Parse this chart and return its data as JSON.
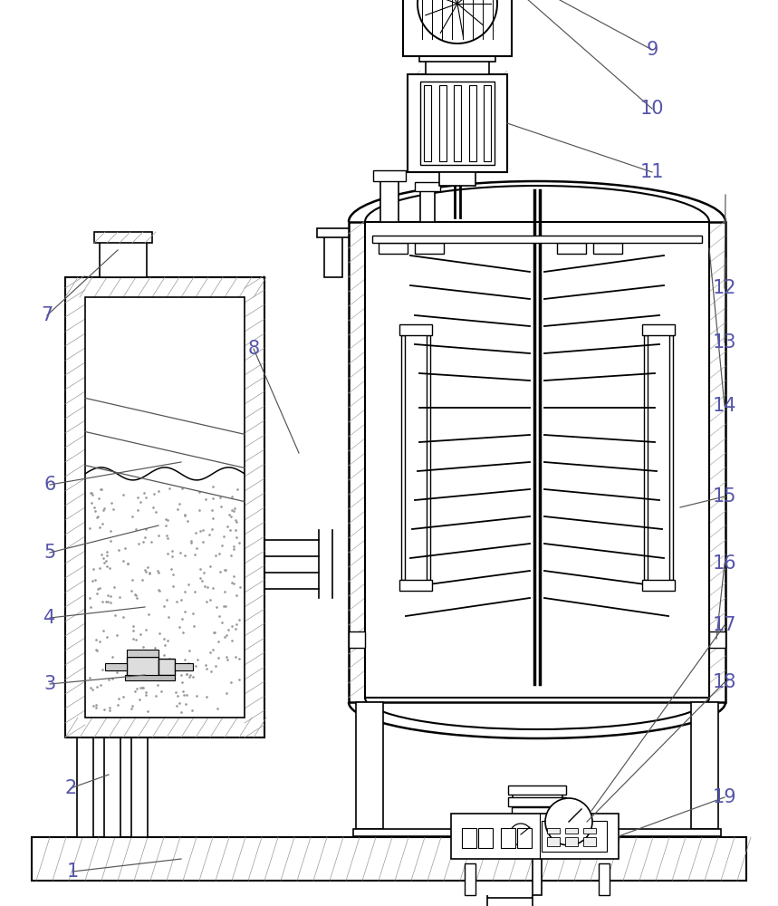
{
  "bg_color": "#ffffff",
  "line_color": "#000000",
  "label_color": "#5555aa",
  "fig_width": 8.59,
  "fig_height": 10.0,
  "hatch_color": "#888888",
  "lw_main": 1.4,
  "lw_thin": 0.8,
  "label_fs": 15
}
